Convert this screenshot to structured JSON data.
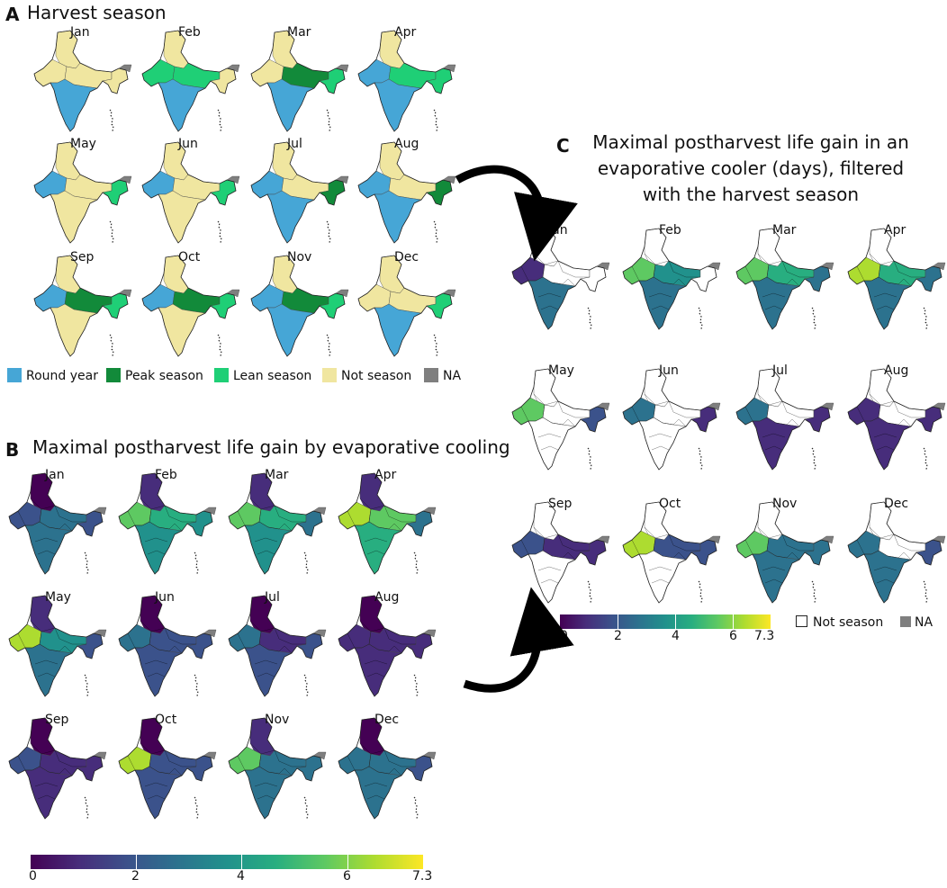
{
  "panelA": {
    "letter": "A",
    "title": "Harvest season",
    "months": [
      "Jan",
      "Feb",
      "Mar",
      "Apr",
      "May",
      "Jun",
      "Jul",
      "Aug",
      "Sep",
      "Oct",
      "Nov",
      "Dec"
    ],
    "legend": [
      {
        "label": "Round year",
        "color": "#46a6d6"
      },
      {
        "label": "Peak season",
        "color": "#128a3a"
      },
      {
        "label": "Lean season",
        "color": "#1fcf76"
      },
      {
        "label": "Not season",
        "color": "#f0e6a0"
      },
      {
        "label": "NA",
        "color": "#7f7f7f"
      }
    ]
  },
  "panelB": {
    "letter": "B",
    "title": "Maximal postharvest life gain by evaporative cooling",
    "months": [
      "Jan",
      "Feb",
      "Mar",
      "Apr",
      "May",
      "Jun",
      "Jul",
      "Aug",
      "Sep",
      "Oct",
      "Nov",
      "Dec"
    ],
    "colorbar": {
      "ticks": [
        "0",
        "2",
        "4",
        "6",
        "7.3"
      ],
      "min": 0,
      "max": 7.3
    }
  },
  "panelC": {
    "letter": "C",
    "title": "Maximal postharvest life gain in an evaporative cooler (days), filtered with the harvest season",
    "months": [
      "Jan",
      "Feb",
      "Mar",
      "Apr",
      "May",
      "Jun",
      "Jul",
      "Aug",
      "Sep",
      "Oct",
      "Nov",
      "Dec"
    ],
    "colorbar": {
      "ticks": [
        "0",
        "2",
        "4",
        "6",
        "7.3"
      ],
      "min": 0,
      "max": 7.3
    },
    "legend": {
      "not_season": "Not season",
      "na": "NA"
    }
  }
}
